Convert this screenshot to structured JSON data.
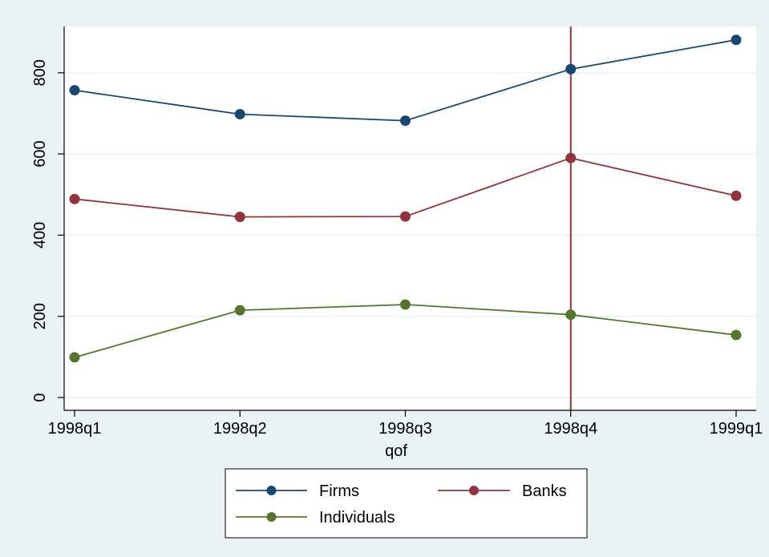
{
  "chart_data": {
    "type": "line",
    "title": "",
    "xlabel": "qof",
    "ylabel": "",
    "categories": [
      "1998q1",
      "1998q2",
      "1998q3",
      "1998q4",
      "1999q1"
    ],
    "ylim": [
      0,
      900
    ],
    "yticks": [
      0,
      200,
      400,
      600,
      800
    ],
    "grid": true,
    "legend_position": "bottom",
    "reference_line": {
      "axis": "x",
      "at": "1998q4",
      "color": "#90353b"
    },
    "series": [
      {
        "name": "Firms",
        "color": "#1a476f",
        "values": [
          757,
          698,
          682,
          809,
          881
        ]
      },
      {
        "name": "Banks",
        "color": "#90353b",
        "values": [
          489,
          445,
          446,
          590,
          497
        ]
      },
      {
        "name": "Individuals",
        "color": "#55752f",
        "values": [
          99,
          215,
          229,
          204,
          154
        ]
      }
    ]
  }
}
